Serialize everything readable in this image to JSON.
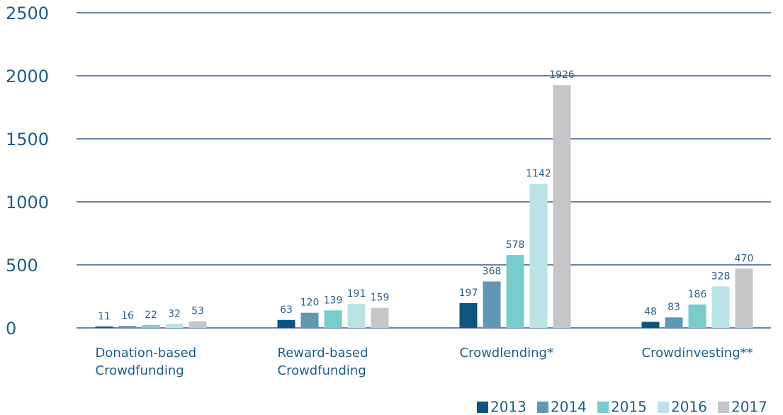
{
  "chart_data": {
    "type": "bar",
    "categories": [
      "Donation-based Crowdfunding",
      "Reward-based Crowdfunding",
      "Crowdlending*",
      "Crowdinvesting**"
    ],
    "series": [
      {
        "name": "2013",
        "color": "#0c5580",
        "values": [
          11,
          63,
          197,
          48
        ]
      },
      {
        "name": "2014",
        "color": "#5f97b5",
        "values": [
          16,
          120,
          368,
          83
        ]
      },
      {
        "name": "2015",
        "color": "#78cccc",
        "values": [
          22,
          139,
          578,
          186
        ]
      },
      {
        "name": "2016",
        "color": "#b9e3e6",
        "values": [
          32,
          191,
          1142,
          328
        ]
      },
      {
        "name": "2017",
        "color": "#c6c6c8",
        "values": [
          53,
          159,
          1926,
          470
        ]
      }
    ],
    "ylim": [
      0,
      2500
    ],
    "yticks": [
      0,
      500,
      1000,
      1500,
      2000,
      2500
    ],
    "grid": true,
    "legend": "bottom-right"
  }
}
